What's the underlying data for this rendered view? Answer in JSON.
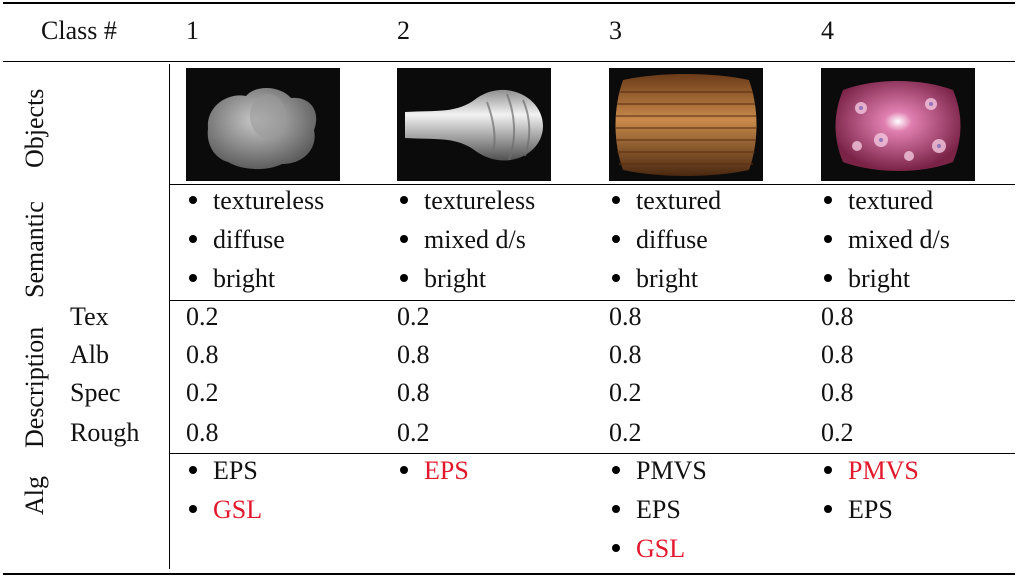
{
  "header": {
    "class_label": "Class #",
    "classes": [
      "1",
      "2",
      "3",
      "4"
    ]
  },
  "row_labels": {
    "objects": "Objects",
    "semantic": "Semantic",
    "description": "Description",
    "alg": "Alg",
    "tex": "Tex",
    "alb": "Alb",
    "spec": "Spec",
    "rough": "Rough"
  },
  "semantic": [
    [
      "textureless",
      "diffuse",
      "bright"
    ],
    [
      "textureless",
      "mixed d/s",
      "bright"
    ],
    [
      "textured",
      "diffuse",
      "bright"
    ],
    [
      "textured",
      "mixed d/s",
      "bright"
    ]
  ],
  "params": [
    {
      "tex": "0.2",
      "alb": "0.8",
      "spec": "0.2",
      "rough": "0.8"
    },
    {
      "tex": "0.2",
      "alb": "0.8",
      "spec": "0.8",
      "rough": "0.2"
    },
    {
      "tex": "0.8",
      "alb": "0.8",
      "spec": "0.2",
      "rough": "0.2"
    },
    {
      "tex": "0.8",
      "alb": "0.8",
      "spec": "0.8",
      "rough": "0.2"
    }
  ],
  "alg": [
    [
      {
        "name": "EPS",
        "highlight": false
      },
      {
        "name": "GSL",
        "highlight": true
      }
    ],
    [
      {
        "name": "EPS",
        "highlight": true
      }
    ],
    [
      {
        "name": "PMVS",
        "highlight": false
      },
      {
        "name": "EPS",
        "highlight": false
      },
      {
        "name": "GSL",
        "highlight": true
      }
    ],
    [
      {
        "name": "PMVS",
        "highlight": true
      },
      {
        "name": "EPS",
        "highlight": false
      }
    ]
  ],
  "objects": [
    "bust-render",
    "vase-render",
    "barrel-render",
    "floral-barrel-render"
  ],
  "colors": {
    "highlight": "#e3182d",
    "rule": "#000000"
  }
}
